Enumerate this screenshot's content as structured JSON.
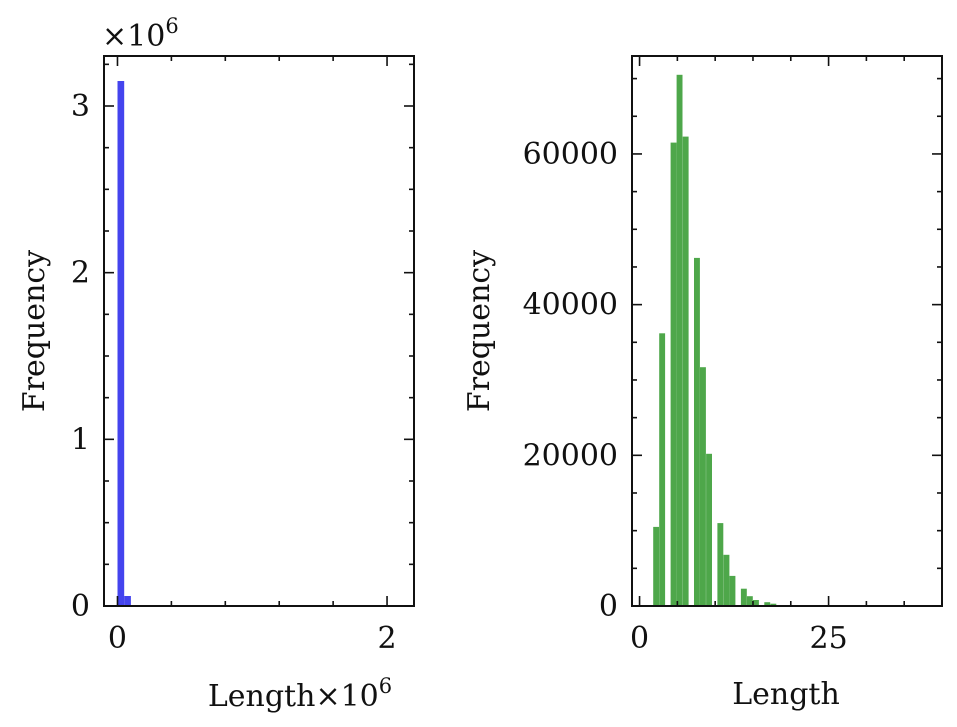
{
  "chart_data": [
    {
      "type": "bar",
      "xlabel": "Length",
      "xlabel_suffix": "×10",
      "xlabel_exp": "6",
      "ylabel": "Frequency",
      "offset_text_y": "×10",
      "offset_text_y_exp": "6",
      "xlim": [
        -0.1,
        2.2
      ],
      "ylim": [
        0,
        3.3
      ],
      "xticks": [
        0,
        2
      ],
      "yticks": [
        0,
        1,
        2,
        3
      ],
      "bin_width": 0.05,
      "bins_start": [
        0,
        0.05
      ],
      "values": [
        3.15,
        0.06
      ],
      "color": "#4444ee"
    },
    {
      "type": "bar",
      "xlabel": "Length",
      "ylabel": "Frequency",
      "xlim": [
        -1,
        40
      ],
      "ylim": [
        0,
        73000
      ],
      "xticks": [
        0,
        25
      ],
      "yticks": [
        0,
        20000,
        40000,
        60000
      ],
      "bin_width": 0.78,
      "bins_start": [
        1.8,
        2.6,
        4.1,
        4.9,
        5.7,
        7.2,
        8.0,
        8.8,
        10.3,
        11.1,
        11.9,
        13.4,
        14.2,
        15.0,
        16.5,
        17.3
      ],
      "values": [
        10500,
        36200,
        61500,
        70500,
        62300,
        46200,
        31700,
        20200,
        11000,
        6800,
        4000,
        2300,
        1300,
        800,
        500,
        300
      ],
      "color": "#4ea74a"
    }
  ]
}
